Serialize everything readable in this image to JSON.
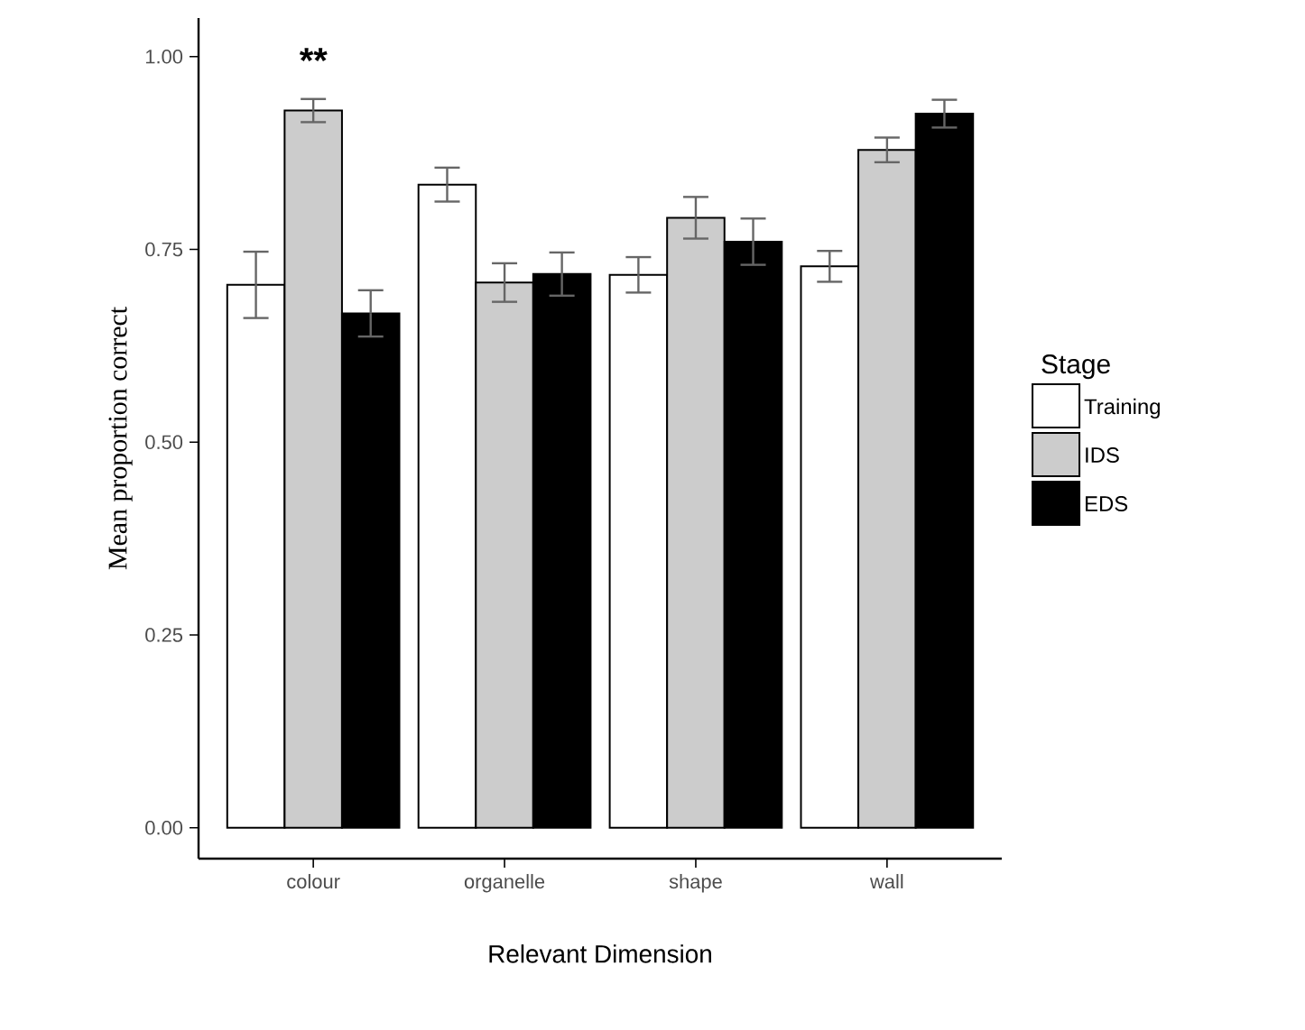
{
  "chart_data": {
    "type": "bar",
    "xlabel": "Relevant Dimension",
    "ylabel": "Mean proportion correct",
    "legend_title": "Stage",
    "legend": "right",
    "grid": false,
    "categories": [
      "colour",
      "organelle",
      "shape",
      "wall"
    ],
    "series": [
      {
        "name": "Training",
        "color": "#ffffff",
        "values": [
          0.704,
          0.834,
          0.717,
          0.728
        ],
        "errors": [
          0.043,
          0.022,
          0.023,
          0.02
        ]
      },
      {
        "name": "IDS",
        "color": "#cccccc",
        "values": [
          0.93,
          0.707,
          0.791,
          0.879
        ],
        "errors": [
          0.015,
          0.025,
          0.027,
          0.016
        ]
      },
      {
        "name": "EDS",
        "color": "#000000",
        "values": [
          0.667,
          0.718,
          0.76,
          0.926
        ],
        "errors": [
          0.03,
          0.028,
          0.03,
          0.018
        ]
      }
    ],
    "ylim": [
      -0.04,
      1.05
    ],
    "yticks": [
      {
        "value": 0,
        "label": "0.00"
      },
      {
        "value": 0.25,
        "label": "0.25"
      },
      {
        "value": 0.5,
        "label": "0.50"
      },
      {
        "value": 0.75,
        "label": "0.75"
      },
      {
        "value": 1,
        "label": "1.00"
      }
    ],
    "annotations": [
      "**"
    ]
  }
}
